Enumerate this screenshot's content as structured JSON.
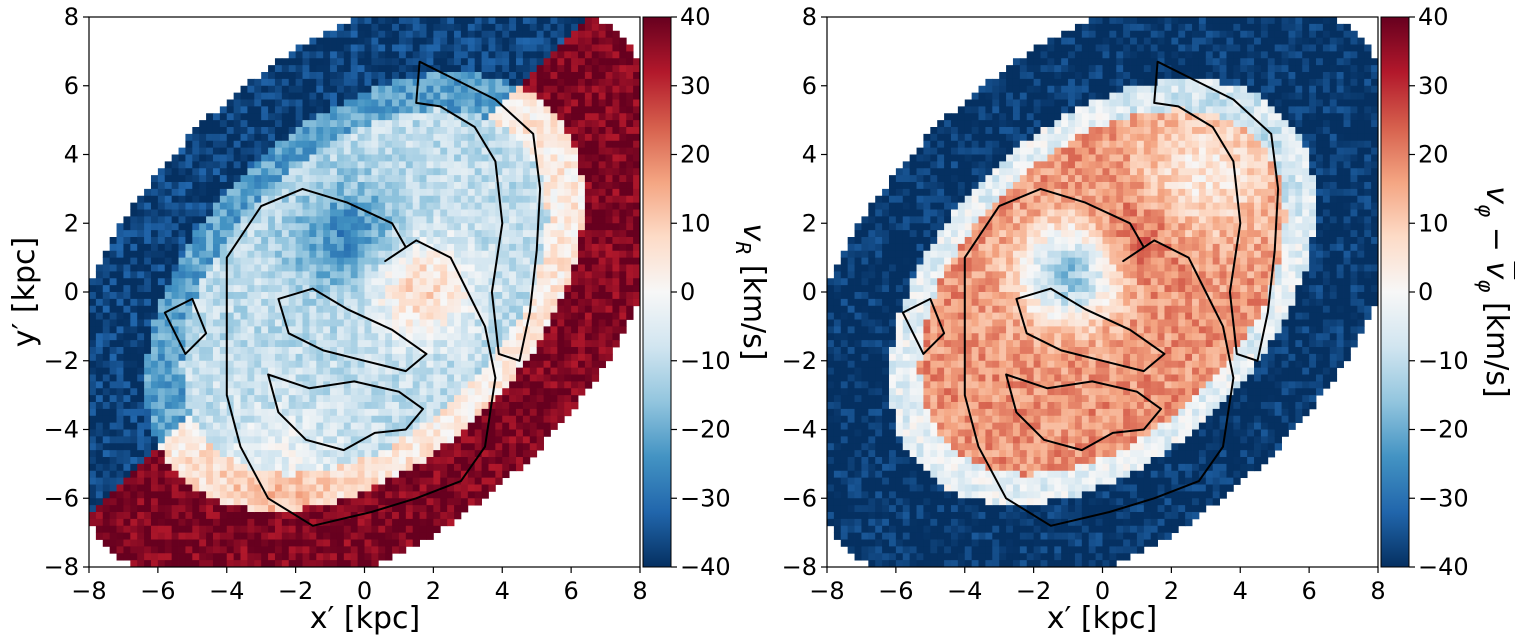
{
  "chart_data": [
    {
      "type": "heatmap",
      "panel": "left",
      "xlabel": "x′ [kpc]",
      "ylabel": "y′ [kpc]",
      "xlim": [
        -8,
        8
      ],
      "ylim": [
        -8,
        8
      ],
      "xticks": [
        -8,
        -6,
        -4,
        -2,
        0,
        2,
        4,
        6,
        8
      ],
      "yticks": [
        -8,
        -6,
        -4,
        -2,
        0,
        2,
        4,
        6,
        8
      ],
      "xtick_labels": [
        "−8",
        "−6",
        "−4",
        "−2",
        "0",
        "2",
        "4",
        "6",
        "8"
      ],
      "ytick_labels": [
        "−8",
        "−6",
        "−4",
        "−2",
        "0",
        "2",
        "4",
        "6",
        "8"
      ],
      "colorbar": {
        "label": "v_R [km/s]",
        "range": [
          -40,
          40
        ],
        "ticks": [
          40,
          30,
          20,
          10,
          0,
          -10,
          -20,
          -30,
          -40
        ],
        "tick_labels": [
          "40",
          "30",
          "20",
          "10",
          "0",
          "−10",
          "−20",
          "−30",
          "−40"
        ],
        "colormap": "RdBu_r"
      },
      "description_of_values": {
        "map_extent": "inclined elliptical disc, major axis from lower-left to upper-right",
        "outer_upper_band": -35,
        "outer_left_band": 35,
        "outer_right_band": 35,
        "inner_disc": -10,
        "central_blue_blob": {
          "x": -0.5,
          "y": 1.5,
          "value": -25
        },
        "central_red_arc": {
          "x": 1.5,
          "y": 0,
          "value": 12
        }
      },
      "grid": false
    },
    {
      "type": "heatmap",
      "panel": "right",
      "xlabel": "x′ [kpc]",
      "ylabel": "",
      "xlim": [
        -8,
        8
      ],
      "ylim": [
        -8,
        8
      ],
      "xticks": [
        -8,
        -6,
        -4,
        -2,
        0,
        2,
        4,
        6,
        8
      ],
      "yticks": [
        -8,
        -6,
        -4,
        -2,
        0,
        2,
        4,
        6,
        8
      ],
      "xtick_labels": [
        "−8",
        "−6",
        "−4",
        "−2",
        "0",
        "2",
        "4",
        "6",
        "8"
      ],
      "ytick_labels": [
        "−8",
        "−6",
        "−4",
        "−2",
        "0",
        "2",
        "4",
        "6",
        "8"
      ],
      "colorbar": {
        "label": "v_φ − v̄_φ [km/s]",
        "range": [
          -40,
          40
        ],
        "ticks": [
          40,
          30,
          20,
          10,
          0,
          -10,
          -20,
          -30,
          -40
        ],
        "tick_labels": [
          "40",
          "30",
          "20",
          "10",
          "0",
          "−10",
          "−20",
          "−30",
          "−40"
        ],
        "colormap": "RdBu_r"
      },
      "description_of_values": {
        "map_extent": "inclined elliptical disc, major axis from lower-left to upper-right",
        "outer_upper_left_band": -38,
        "outer_lower_right_band": -38,
        "inner_disc": 18,
        "central_blue_blob": {
          "x": -1.0,
          "y": 0.5,
          "value": -20
        },
        "central_red_arc": {
          "x": 1.0,
          "y": 1.5,
          "value": 20
        }
      },
      "grid": false
    }
  ]
}
